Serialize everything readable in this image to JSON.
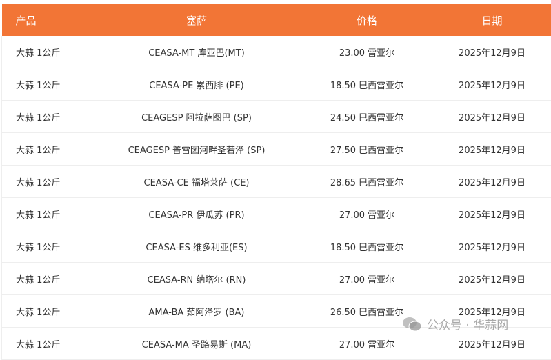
{
  "header": {
    "product": "产品",
    "ceasa": "塞萨",
    "price": "价格",
    "date": "日期"
  },
  "rows": [
    {
      "product": "大蒜 1公斤",
      "ceasa": "CEASA-MT 库亚巴(MT)",
      "price": "23.00 雷亚尔",
      "date": "2025年12月9日"
    },
    {
      "product": "大蒜 1公斤",
      "ceasa": "CEASA-PE 累西腓 (PE)",
      "price": "18.50 巴西雷亚尔",
      "date": "2025年12月9日"
    },
    {
      "product": "大蒜 1公斤",
      "ceasa": "CEAGESP 阿拉萨图巴 (SP)",
      "price": "24.50 巴西雷亚尔",
      "date": "2025年12月9日"
    },
    {
      "product": "大蒜 1公斤",
      "ceasa": "CEAGESP 普雷图河畔圣若泽 (SP)",
      "price": "27.50 巴西雷亚尔",
      "date": "2025年12月9日"
    },
    {
      "product": "大蒜 1公斤",
      "ceasa": "CEASA-CE 福塔莱萨 (CE)",
      "price": "28.65 巴西雷亚尔",
      "date": "2025年12月9日"
    },
    {
      "product": "大蒜 1公斤",
      "ceasa": "CEASA-PR 伊瓜苏 (PR)",
      "price": "27.00 雷亚尔",
      "date": "2025年12月9日"
    },
    {
      "product": "大蒜 1公斤",
      "ceasa": "CEASA-ES 维多利亚(ES)",
      "price": "18.50 巴西雷亚尔",
      "date": "2025年12月9日"
    },
    {
      "product": "大蒜 1公斤",
      "ceasa": "CEASA-RN 纳塔尔 (RN)",
      "price": "27.00 雷亚尔",
      "date": "2025年12月9日"
    },
    {
      "product": "大蒜 1公斤",
      "ceasa": "AMA-BA 茹阿泽罗 (BA)",
      "price": "26.50 巴西雷亚尔",
      "date": "2025年12月9日"
    },
    {
      "product": "大蒜 1公斤",
      "ceasa": "CEASA-MA 圣路易斯 (MA)",
      "price": "27.00 雷亚尔",
      "date": "2025年12月9日"
    }
  ],
  "watermark": {
    "text": "公众号 · 华蒜网",
    "icon": "wechat-icon"
  },
  "colors": {
    "header_bg": "#F27536"
  }
}
